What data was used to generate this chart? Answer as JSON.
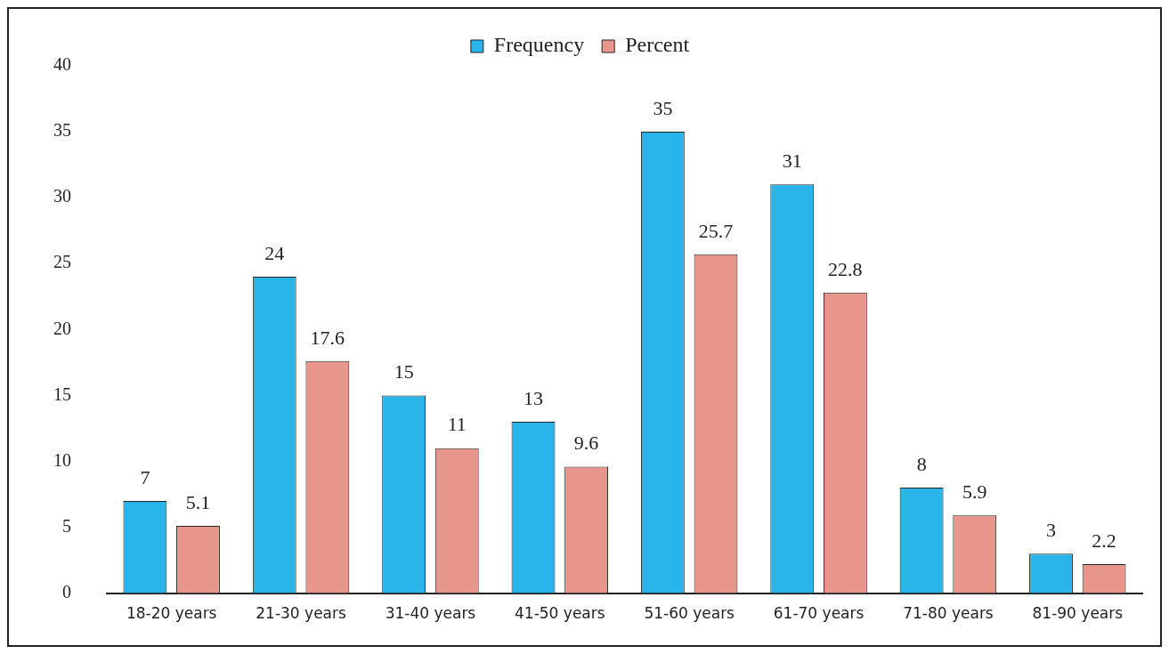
{
  "chart_data": {
    "type": "bar",
    "categories": [
      "18-20 years",
      "21-30 years",
      "31-40 years",
      "41-50 years",
      "51-60 years",
      "61-70 years",
      "71-80 years",
      "81-90 years"
    ],
    "series": [
      {
        "name": "Frequency",
        "color": "#29b5ea",
        "values": [
          7,
          24,
          15,
          13,
          35,
          31,
          8,
          3
        ]
      },
      {
        "name": "Percent",
        "color": "#e8968c",
        "values": [
          5.1,
          17.6,
          11,
          9.6,
          25.7,
          22.8,
          5.9,
          2.2
        ]
      }
    ],
    "ylim": [
      0,
      40
    ],
    "yticks": [
      0,
      5,
      10,
      15,
      20,
      25,
      30,
      35,
      40
    ],
    "grid": false,
    "legend": "top",
    "data_labels": true
  }
}
